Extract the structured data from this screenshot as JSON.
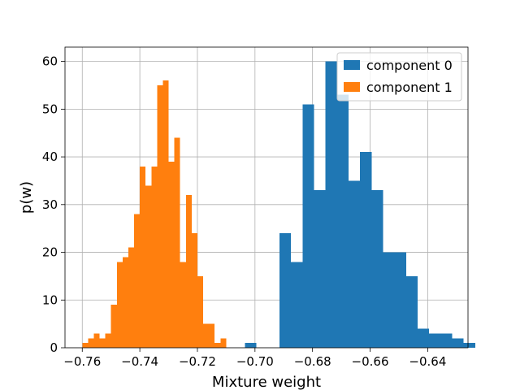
{
  "chart_data": {
    "type": "histogram",
    "title": "",
    "xlabel": "Mixture weight",
    "ylabel": "p(w)",
    "xlim": [
      -0.766,
      -0.626
    ],
    "ylim": [
      0,
      63
    ],
    "grid": true,
    "legend_position": "top-right",
    "xticks": [
      -0.76,
      -0.74,
      -0.72,
      -0.7,
      -0.68,
      -0.66,
      -0.64
    ],
    "xtick_labels": [
      "−0.76",
      "−0.74",
      "−0.72",
      "−0.70",
      "−0.68",
      "−0.66",
      "−0.64"
    ],
    "yticks": [
      0,
      10,
      20,
      30,
      40,
      50,
      60
    ],
    "ytick_labels": [
      "0",
      "10",
      "20",
      "30",
      "40",
      "50",
      "60"
    ],
    "series": [
      {
        "name": "component 0",
        "color": "#1f77b4",
        "bin_start": -0.7035,
        "bin_width": 0.004,
        "values": [
          1,
          0,
          0,
          24,
          18,
          51,
          33,
          60,
          53,
          35,
          41,
          33,
          20,
          20,
          15,
          4,
          3,
          3,
          2,
          1
        ]
      },
      {
        "name": "component 1",
        "color": "#ff7f0e",
        "bin_start": -0.76,
        "bin_width": 0.002,
        "values": [
          1,
          2,
          3,
          2,
          3,
          9,
          18,
          19,
          21,
          28,
          38,
          34,
          38,
          55,
          56,
          39,
          44,
          18,
          32,
          24,
          15,
          5,
          5,
          1,
          2
        ]
      }
    ]
  }
}
